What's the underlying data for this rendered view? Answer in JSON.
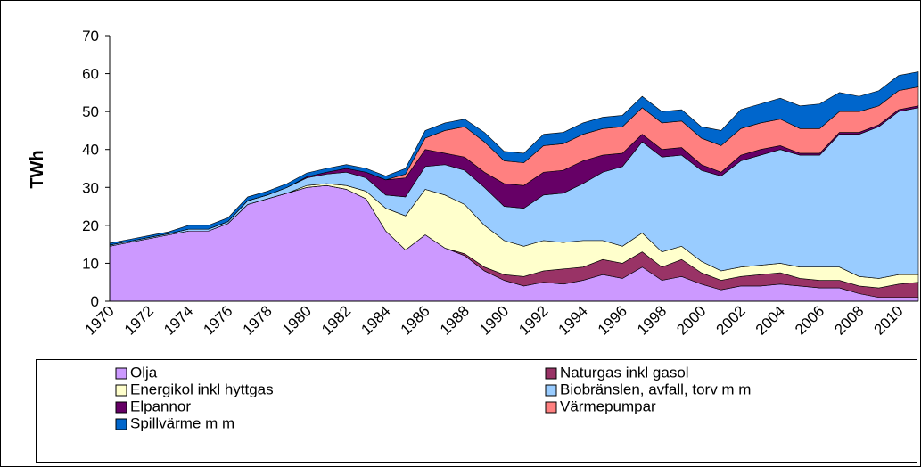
{
  "chart_data": {
    "type": "stacked-area",
    "y_label": "TWh",
    "categories": [
      "1970",
      null,
      "1972",
      null,
      "1974",
      null,
      "1976",
      null,
      "1978",
      null,
      "1980",
      null,
      "1982",
      null,
      "1984",
      null,
      "1986",
      null,
      "1988",
      null,
      "1990",
      null,
      "1992",
      null,
      "1994",
      null,
      "1996",
      null,
      "1998",
      null,
      "2000",
      null,
      "2002",
      null,
      "2004",
      null,
      "2006",
      null,
      "2008",
      null,
      "2010",
      null
    ],
    "ylim": [
      0,
      70
    ],
    "yticks": [
      0,
      10,
      20,
      30,
      40,
      50,
      60,
      70
    ],
    "series": [
      {
        "name": "Olja",
        "color": "#cc99ff",
        "values": [
          14.5,
          15.5,
          16.5,
          17.5,
          18.5,
          18.5,
          20.5,
          25.5,
          27,
          28.5,
          30,
          30.5,
          29.5,
          27,
          18.5,
          13.5,
          17.5,
          14,
          12,
          8,
          5.5,
          4,
          5,
          4.5,
          5.5,
          7,
          6,
          9,
          5.5,
          6.5,
          4.5,
          3,
          4,
          4,
          4.5,
          4,
          3.5,
          3.5,
          2,
          1,
          1,
          1
        ]
      },
      {
        "name": "Naturgas inkl gasol",
        "color": "#993366",
        "values": [
          0,
          0,
          0,
          0,
          0,
          0,
          0,
          0,
          0,
          0,
          0,
          0,
          0,
          0,
          0,
          0,
          0,
          0,
          0.5,
          1,
          1.5,
          2.5,
          3,
          4,
          3.5,
          4,
          4,
          4,
          3.5,
          4.5,
          3,
          2.5,
          2.5,
          3,
          3,
          2,
          2,
          2,
          2,
          2.5,
          3.5,
          4
        ]
      },
      {
        "name": "Energikol inkl hyttgas",
        "color": "#ffffcc",
        "values": [
          0,
          0,
          0,
          0,
          0,
          0,
          0,
          0,
          0,
          0,
          0.5,
          0.5,
          1,
          2,
          6,
          9,
          12,
          14,
          13,
          11,
          9,
          8,
          8,
          7,
          7,
          5,
          4.5,
          5,
          4,
          3.5,
          3,
          2.5,
          2.5,
          2.5,
          2.5,
          3,
          3.5,
          3.5,
          2.5,
          2.5,
          2.5,
          2
        ]
      },
      {
        "name": "Biobränslen, avfall, torv m m",
        "color": "#99ccff",
        "values": [
          0.3,
          0.3,
          0.3,
          0.3,
          0.5,
          0.5,
          0.5,
          1,
          1,
          1.5,
          2,
          2.5,
          3.5,
          3.5,
          3.5,
          5,
          6,
          8,
          9,
          10,
          9,
          10,
          12,
          13,
          15,
          18,
          21,
          24,
          25,
          24,
          24,
          25,
          28,
          29,
          30,
          29.5,
          29.5,
          35,
          37.5,
          40,
          43,
          44
        ]
      },
      {
        "name": "Elpannor",
        "color": "#660066",
        "values": [
          0,
          0,
          0,
          0,
          0,
          0,
          0,
          0,
          0,
          0,
          0.3,
          0.5,
          1,
          1.5,
          4,
          5,
          4.5,
          3,
          3.5,
          4,
          6,
          6,
          6,
          6,
          6,
          4.5,
          3.5,
          2,
          2,
          2,
          1.5,
          1,
          1.5,
          1.5,
          1,
          0.5,
          0.5,
          0.5,
          0.5,
          0.5,
          0.5,
          0.5
        ]
      },
      {
        "name": "Värmepumpar",
        "color": "#ff8080",
        "values": [
          0,
          0,
          0,
          0,
          0,
          0,
          0,
          0,
          0,
          0,
          0,
          0,
          0,
          0,
          0,
          1,
          3,
          6,
          8,
          8,
          6,
          6,
          7,
          7,
          7,
          7,
          7,
          7,
          7,
          7,
          7,
          7,
          7,
          7,
          7,
          6.5,
          6.5,
          5.5,
          5.5,
          5,
          5,
          5
        ]
      },
      {
        "name": "Spillvärme m m",
        "color": "#0066cc",
        "values": [
          0.5,
          0.5,
          0.5,
          0.5,
          1,
          1,
          1,
          1,
          1,
          1,
          1,
          1,
          1,
          1,
          1,
          1.5,
          2,
          2,
          2,
          2.5,
          2.5,
          2.5,
          3,
          3,
          3,
          3,
          3,
          3,
          3,
          3,
          3,
          4,
          5,
          5,
          5.5,
          6,
          6.5,
          5,
          4,
          4,
          4,
          4
        ]
      }
    ]
  }
}
